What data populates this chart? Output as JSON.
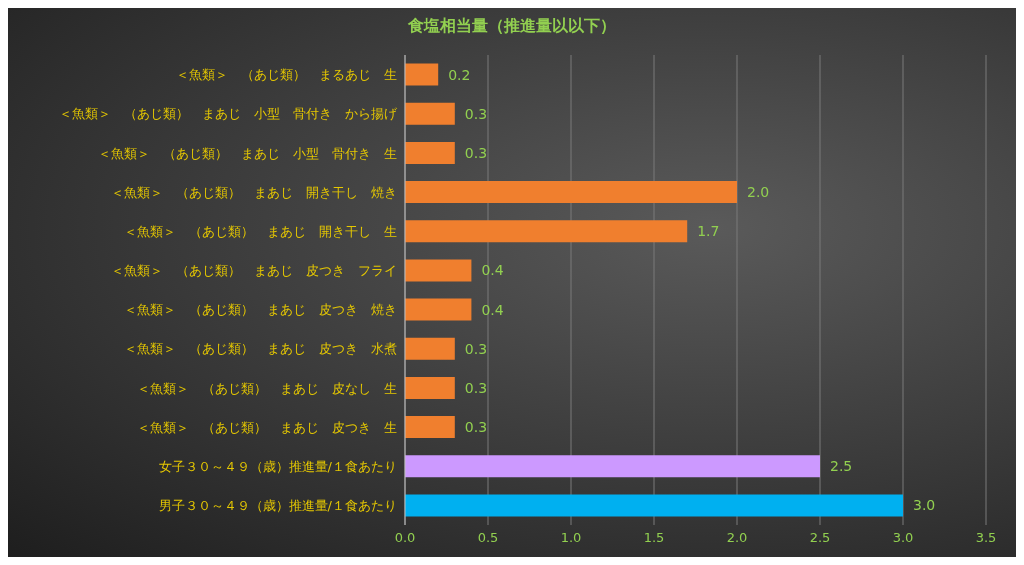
{
  "chart_data": {
    "type": "bar",
    "orientation": "horizontal",
    "title": "食塩相当量（推進量以以下）",
    "categories": [
      "＜魚類＞　（あじ類）　まるあじ　生",
      "＜魚類＞　（あじ類）　まあじ　小型　骨付き　から揚げ",
      "＜魚類＞　（あじ類）　まあじ　小型　骨付き　生",
      "＜魚類＞　（あじ類）　まあじ　開き干し　焼き",
      "＜魚類＞　（あじ類）　まあじ　開き干し　生",
      "＜魚類＞　（あじ類）　まあじ　皮つき　フライ",
      "＜魚類＞　（あじ類）　まあじ　皮つき　焼き",
      "＜魚類＞　（あじ類）　まあじ　皮つき　水煮",
      "＜魚類＞　（あじ類）　まあじ　皮なし　生",
      "＜魚類＞　（あじ類）　まあじ　皮つき　生",
      "女子３０～４９（歳）推進量/１食あたり",
      "男子３０～４９（歳）推進量/１食あたり"
    ],
    "values": [
      0.2,
      0.3,
      0.3,
      2.0,
      1.7,
      0.4,
      0.4,
      0.3,
      0.3,
      0.3,
      2.5,
      3.0
    ],
    "value_labels": [
      "0.2",
      "0.3",
      "0.3",
      "2.0",
      "1.7",
      "0.4",
      "0.4",
      "0.3",
      "0.3",
      "0.3",
      "2.5",
      "3.0"
    ],
    "colors": [
      "#f07f2e",
      "#f07f2e",
      "#f07f2e",
      "#f07f2e",
      "#f07f2e",
      "#f07f2e",
      "#f07f2e",
      "#f07f2e",
      "#f07f2e",
      "#f07f2e",
      "#cc99ff",
      "#00b0f0"
    ],
    "xlim": [
      0,
      3.5
    ],
    "xticks": [
      "0.0",
      "0.5",
      "1.0",
      "1.5",
      "2.0",
      "2.5",
      "3.0",
      "3.5"
    ],
    "grid": "x"
  }
}
